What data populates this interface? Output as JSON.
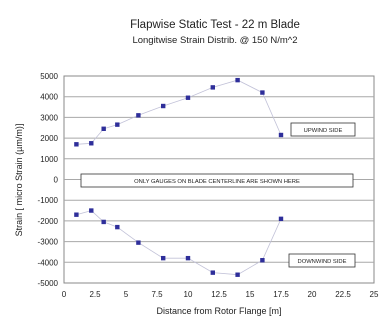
{
  "chart_data": {
    "type": "scatter",
    "title": "Flapwise Static Test - 22 m Blade",
    "subtitle": "Longitwise Strain Distrib. @ 150 N/m^2",
    "xlabel": "Distance from Rotor Flange [m]",
    "ylabel": "Strain [ micro Strain (µm/m)]",
    "xlim": [
      0,
      25
    ],
    "ylim": [
      -5000,
      5000
    ],
    "x_ticks": [
      "0",
      "2.5",
      "5",
      "7.5",
      "10",
      "12.5",
      "15",
      "17.5",
      "20",
      "22.5",
      "25"
    ],
    "y_ticks": [
      "5000",
      "4000",
      "3000",
      "2000",
      "1000",
      "0",
      "-1000",
      "-2000",
      "-3000",
      "-4000",
      "-5000"
    ],
    "grid": true,
    "series": [
      {
        "name": "UPWIND SIDE",
        "points": [
          [
            1,
            1700
          ],
          [
            2.2,
            1750
          ],
          [
            3.2,
            2450
          ],
          [
            4.3,
            2650
          ],
          [
            6,
            3100
          ],
          [
            8,
            3550
          ],
          [
            10,
            3950
          ],
          [
            12,
            4450
          ],
          [
            14,
            4800
          ],
          [
            16,
            4200
          ],
          [
            17.5,
            2150
          ]
        ]
      },
      {
        "name": "DOWNWIND SIDE",
        "points": [
          [
            1,
            -1700
          ],
          [
            2.2,
            -1500
          ],
          [
            3.2,
            -2050
          ],
          [
            4.3,
            -2300
          ],
          [
            6,
            -3050
          ],
          [
            8,
            -3800
          ],
          [
            10,
            -3800
          ],
          [
            12,
            -4500
          ],
          [
            14,
            -4600
          ],
          [
            16,
            -3900
          ],
          [
            17.5,
            -1900
          ]
        ]
      }
    ],
    "annotation": "ONLY GAUGES ON BLADE CENTERLINE ARE SHOWN HERE"
  }
}
